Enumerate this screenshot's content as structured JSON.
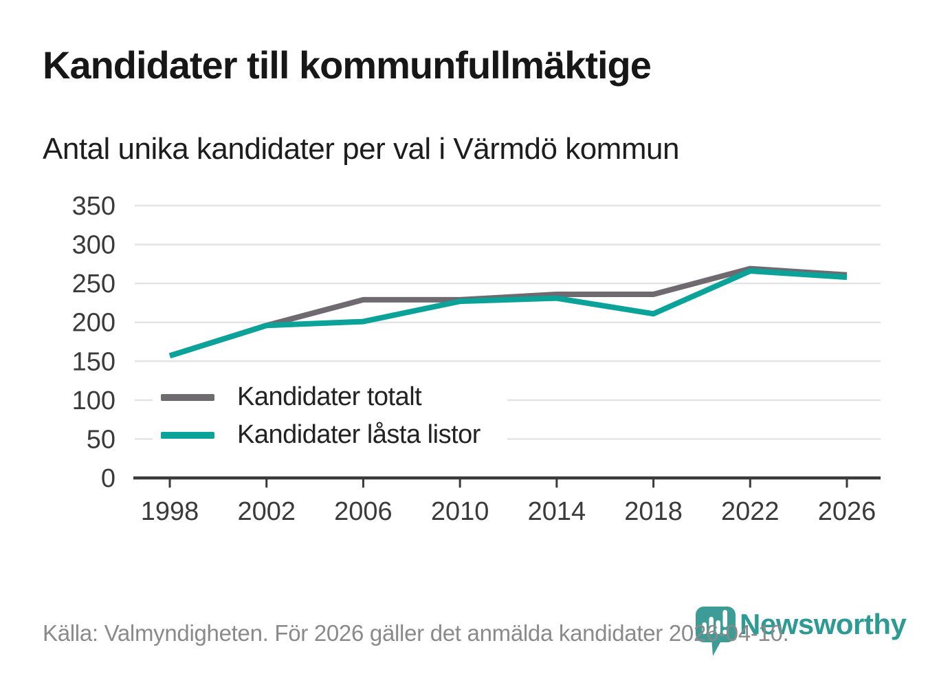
{
  "header": {
    "title": "Kandidater till kommunfullmäktige",
    "subtitle": "Antal unika kandidater per val i Värmdö kommun"
  },
  "chart_data": {
    "type": "line",
    "title": "Kandidater till kommunfullmäktige",
    "subtitle": "Antal unika kandidater per val i Värmdö kommun",
    "x": [
      1998,
      2002,
      2006,
      2010,
      2014,
      2018,
      2022,
      2026
    ],
    "series": [
      {
        "name": "Kandidater totalt",
        "color": "#6E6A6F",
        "values": [
          157,
          196,
          229,
          229,
          236,
          236,
          269,
          261
        ]
      },
      {
        "name": "Kandidater låsta listor",
        "color": "#0BA29A",
        "values": [
          157,
          196,
          201,
          227,
          231,
          211,
          266,
          258
        ]
      }
    ],
    "xlabel": "",
    "ylabel": "",
    "ylim": [
      0,
      350
    ],
    "yticks": [
      0,
      50,
      100,
      150,
      200,
      250,
      300,
      350
    ],
    "grid": "horizontal",
    "legend_position": "inside bottom-left"
  },
  "style_colors": {
    "grid": "#E4E4E4",
    "axis": "#3A3A3A",
    "tick_text": "#3A3A3A"
  },
  "footer": {
    "source_text": "Källa: Valmyndigheten. För 2026 gäller det anmälda kandidater 2026-04-10.",
    "brand": "Newsworthy"
  }
}
